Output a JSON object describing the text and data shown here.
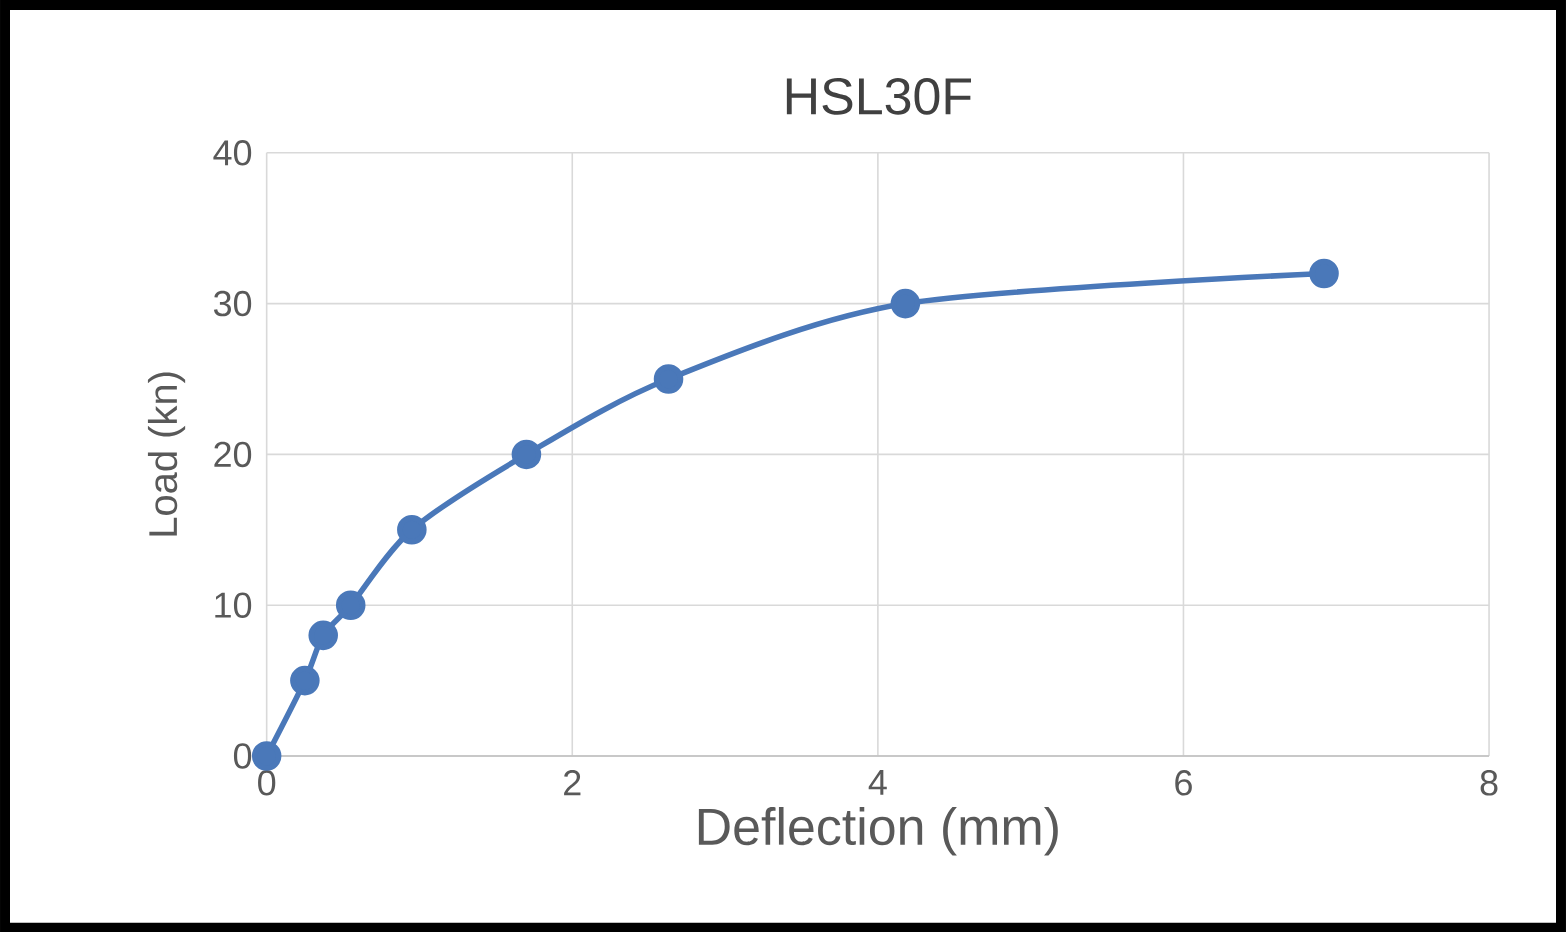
{
  "chart_data": {
    "type": "line",
    "title": "HSL30F",
    "xlabel": "Deflection (mm)",
    "ylabel": "Load (kn)",
    "x": [
      0,
      0.25,
      0.37,
      0.55,
      0.95,
      1.7,
      2.63,
      4.18,
      6.92
    ],
    "series": [
      {
        "color": "#4a78b9",
        "values": [
          0,
          5,
          8,
          10,
          15,
          20,
          25,
          30,
          32
        ]
      }
    ],
    "xlim": [
      0,
      8
    ],
    "xticks": [
      0,
      2,
      4,
      6,
      8
    ],
    "ylim": [
      0,
      40
    ],
    "yticks": [
      0,
      10,
      20,
      30,
      40
    ],
    "grid": true,
    "marker": "circle",
    "line_style": "solid"
  }
}
